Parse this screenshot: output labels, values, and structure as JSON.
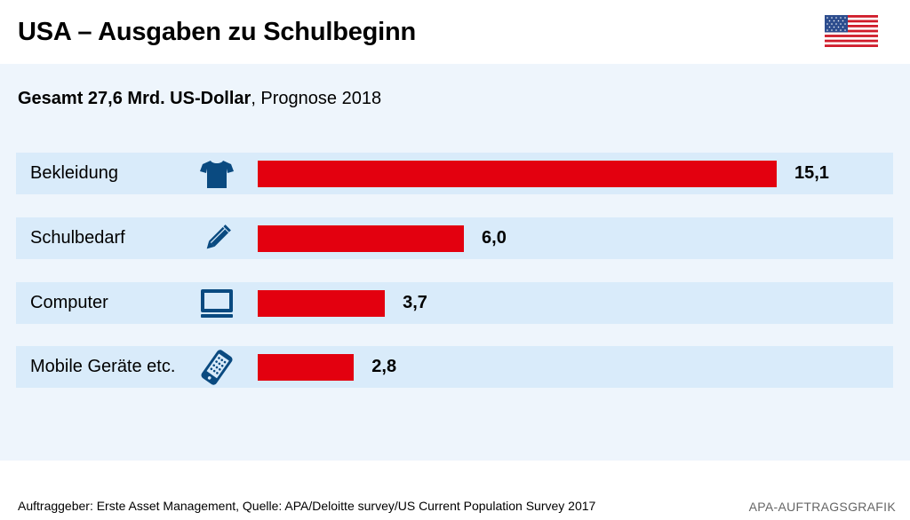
{
  "header": {
    "title": "USA – Ausgaben zu Schulbeginn",
    "flag_icon": "usa-flag-icon"
  },
  "subtitle": {
    "bold": "Gesamt 27,6 Mrd. US-Dollar",
    "rest": ", Prognose 2018"
  },
  "chart_data": {
    "type": "bar",
    "orientation": "horizontal",
    "categories": [
      "Bekleidung",
      "Schulbedarf",
      "Computer",
      "Mobile Geräte etc."
    ],
    "values": [
      15.1,
      6.0,
      3.7,
      2.8
    ],
    "value_labels": [
      "15,1",
      "6,0",
      "3,7",
      "2,8"
    ],
    "icons": [
      "tshirt-icon",
      "pencil-icon",
      "monitor-icon",
      "mobile-phone-icon"
    ],
    "bar_color": "#e3000f",
    "icon_color": "#0a4a80",
    "title": "USA – Ausgaben zu Schulbeginn",
    "xlim": [
      0,
      15.1
    ]
  },
  "footer": {
    "source": "Auftraggeber: Erste Asset Management, Quelle: APA/Deloitte survey/US Current Population Survey 2017",
    "brand": "APA-AUFTRAGSGRAFIK"
  }
}
